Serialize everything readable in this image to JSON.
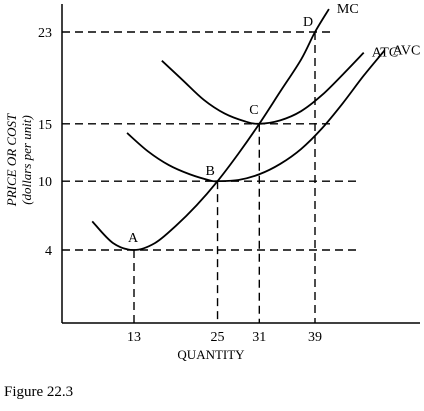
{
  "chart_data": {
    "type": "line",
    "xlabel": "QUANTITY",
    "ylabel": "PRICE OR COST",
    "ylabel_units": "(dollars per unit)",
    "x_ticks": [
      13,
      25,
      31,
      39
    ],
    "y_ticks": [
      4,
      10,
      15,
      23
    ],
    "series": [
      {
        "name": "MC",
        "x": [
          7,
          10,
          13,
          16,
          19,
          22,
          25,
          28,
          31,
          34,
          37,
          39,
          41
        ],
        "y": [
          6.5,
          4.6,
          4,
          4.6,
          6.1,
          7.9,
          10,
          12.4,
          15,
          17.8,
          20.6,
          23,
          25
        ]
      },
      {
        "name": "ATC",
        "x": [
          17,
          20,
          23,
          26,
          29,
          31,
          34,
          37,
          40,
          43,
          46
        ],
        "y": [
          20.5,
          18.8,
          17.1,
          15.9,
          15.2,
          15,
          15.3,
          16.1,
          17.5,
          19.3,
          21.2
        ]
      },
      {
        "name": "AVC",
        "x": [
          12,
          15,
          18,
          21,
          24,
          25,
          28,
          31,
          34,
          37,
          40,
          43,
          46,
          49
        ],
        "y": [
          14.2,
          12.6,
          11.4,
          10.6,
          10.05,
          10,
          10.1,
          10.6,
          11.5,
          12.8,
          14.6,
          16.8,
          19.2,
          21.4
        ]
      }
    ],
    "points": [
      {
        "label": "A",
        "x": 13,
        "y": 4
      },
      {
        "label": "B",
        "x": 25,
        "y": 10
      },
      {
        "label": "C",
        "x": 31,
        "y": 15
      },
      {
        "label": "D",
        "x": 39,
        "y": 23
      }
    ],
    "grid": false
  },
  "caption": "Figure 22.3"
}
